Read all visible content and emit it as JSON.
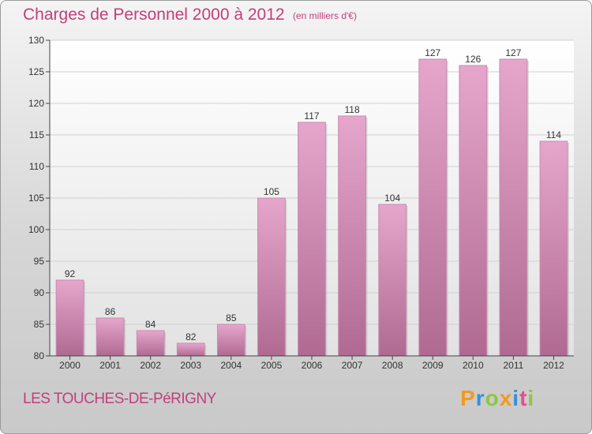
{
  "header": {
    "title": "Charges de Personnel 2000 à 2012",
    "subtitle": "(en milliers d'€)"
  },
  "footer": {
    "commune": "LES TOUCHES-DE-PéRIGNY",
    "logo_letters": [
      "P",
      "r",
      "o",
      "x",
      "i",
      "t",
      "i"
    ]
  },
  "colors": {
    "title": "#c0407a",
    "bar_top": "#e6a6cc",
    "bar_bottom": "#b06a92",
    "logo": [
      "#f29a1e",
      "#3a8fd1",
      "#8cc63f",
      "#f29a1e",
      "#3a8fd1",
      "#e84e8a",
      "#8cc63f"
    ]
  },
  "chart_data": {
    "type": "bar",
    "categories": [
      "2000",
      "2001",
      "2002",
      "2003",
      "2004",
      "2005",
      "2006",
      "2007",
      "2008",
      "2009",
      "2010",
      "2011",
      "2012"
    ],
    "values": [
      92,
      86,
      84,
      82,
      85,
      105,
      117,
      118,
      104,
      127,
      126,
      127,
      114
    ],
    "title": "Charges de Personnel 2000 à 2012",
    "subtitle": "(en milliers d'€)",
    "xlabel": "",
    "ylabel": "",
    "ylim": [
      80,
      130
    ],
    "yticks": [
      80,
      85,
      90,
      95,
      100,
      105,
      110,
      115,
      120,
      125,
      130
    ],
    "grid": true,
    "data_labels": true
  }
}
